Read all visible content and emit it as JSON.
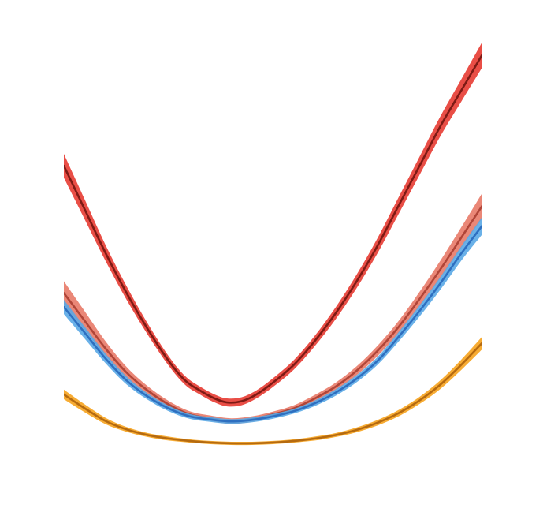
{
  "chart_data": {
    "type": "line",
    "title": "",
    "xlabel": "",
    "ylabel": "",
    "axes_visible": false,
    "grid": false,
    "legend": "none",
    "xlim": [
      -1.0,
      1.0
    ],
    "ylim": [
      0.0,
      1.0
    ],
    "series": [
      {
        "color": "#e8453c",
        "line_color": "#7d1a14",
        "band_opacity": 0.95,
        "center": [
          [
            -1.0,
            0.71
          ],
          [
            -0.9,
            0.6
          ],
          [
            -0.8,
            0.49
          ],
          [
            -0.7,
            0.39
          ],
          [
            -0.6,
            0.3
          ],
          [
            -0.5,
            0.22
          ],
          [
            -0.42,
            0.17
          ],
          [
            -0.35,
            0.145
          ],
          [
            -0.28,
            0.125
          ],
          [
            -0.22,
            0.115
          ],
          [
            -0.15,
            0.118
          ],
          [
            -0.08,
            0.135
          ],
          [
            0.0,
            0.165
          ],
          [
            0.1,
            0.21
          ],
          [
            0.2,
            0.27
          ],
          [
            0.3,
            0.34
          ],
          [
            0.4,
            0.42
          ],
          [
            0.5,
            0.51
          ],
          [
            0.6,
            0.61
          ],
          [
            0.7,
            0.71
          ],
          [
            0.8,
            0.81
          ],
          [
            0.9,
            0.9
          ],
          [
            1.0,
            0.99
          ]
        ],
        "half_width": [
          0.03,
          0.025,
          0.02,
          0.017,
          0.014,
          0.012,
          0.011,
          0.01,
          0.01,
          0.01,
          0.01,
          0.01,
          0.011,
          0.012,
          0.013,
          0.015,
          0.017,
          0.019,
          0.021,
          0.023,
          0.025,
          0.028,
          0.032
        ]
      },
      {
        "color": "#e87a68",
        "line_color": "#b04538",
        "band_opacity": 0.9,
        "center": [
          [
            -1.0,
            0.39
          ],
          [
            -0.9,
            0.32
          ],
          [
            -0.8,
            0.25
          ],
          [
            -0.7,
            0.19
          ],
          [
            -0.6,
            0.145
          ],
          [
            -0.5,
            0.11
          ],
          [
            -0.4,
            0.085
          ],
          [
            -0.3,
            0.075
          ],
          [
            -0.2,
            0.068
          ],
          [
            -0.1,
            0.073
          ],
          [
            0.0,
            0.085
          ],
          [
            0.1,
            0.1
          ],
          [
            0.2,
            0.125
          ],
          [
            0.3,
            0.155
          ],
          [
            0.4,
            0.195
          ],
          [
            0.5,
            0.245
          ],
          [
            0.6,
            0.305
          ],
          [
            0.7,
            0.375
          ],
          [
            0.8,
            0.45
          ],
          [
            0.9,
            0.53
          ],
          [
            1.0,
            0.61
          ]
        ],
        "half_width": [
          0.03,
          0.024,
          0.018,
          0.014,
          0.011,
          0.009,
          0.008,
          0.007,
          0.007,
          0.007,
          0.007,
          0.008,
          0.009,
          0.01,
          0.011,
          0.013,
          0.015,
          0.018,
          0.022,
          0.026,
          0.032
        ]
      },
      {
        "color": "#5aa9e6",
        "line_color": "#2e6fc0",
        "band_opacity": 0.9,
        "center": [
          [
            -1.0,
            0.355
          ],
          [
            -0.9,
            0.29
          ],
          [
            -0.8,
            0.225
          ],
          [
            -0.7,
            0.17
          ],
          [
            -0.6,
            0.13
          ],
          [
            -0.5,
            0.1
          ],
          [
            -0.4,
            0.08
          ],
          [
            -0.3,
            0.072
          ],
          [
            -0.2,
            0.067
          ],
          [
            -0.1,
            0.071
          ],
          [
            0.0,
            0.08
          ],
          [
            0.1,
            0.093
          ],
          [
            0.2,
            0.113
          ],
          [
            0.3,
            0.14
          ],
          [
            0.4,
            0.175
          ],
          [
            0.5,
            0.22
          ],
          [
            0.6,
            0.28
          ],
          [
            0.7,
            0.345
          ],
          [
            0.8,
            0.415
          ],
          [
            0.9,
            0.49
          ],
          [
            1.0,
            0.56
          ]
        ],
        "half_width": [
          0.018,
          0.015,
          0.012,
          0.01,
          0.008,
          0.007,
          0.006,
          0.006,
          0.006,
          0.006,
          0.006,
          0.006,
          0.007,
          0.008,
          0.009,
          0.01,
          0.012,
          0.014,
          0.016,
          0.018,
          0.022
        ]
      },
      {
        "color": "#f7a829",
        "line_color": "#b56a10",
        "band_opacity": 0.95,
        "center": [
          [
            -1.0,
            0.135
          ],
          [
            -0.9,
            0.1
          ],
          [
            -0.8,
            0.068
          ],
          [
            -0.7,
            0.047
          ],
          [
            -0.6,
            0.033
          ],
          [
            -0.5,
            0.024
          ],
          [
            -0.4,
            0.018
          ],
          [
            -0.3,
            0.014
          ],
          [
            -0.2,
            0.012
          ],
          [
            -0.1,
            0.012
          ],
          [
            0.0,
            0.014
          ],
          [
            0.1,
            0.018
          ],
          [
            0.2,
            0.024
          ],
          [
            0.3,
            0.033
          ],
          [
            0.4,
            0.046
          ],
          [
            0.5,
            0.064
          ],
          [
            0.6,
            0.088
          ],
          [
            0.7,
            0.12
          ],
          [
            0.8,
            0.16
          ],
          [
            0.9,
            0.21
          ],
          [
            1.0,
            0.265
          ]
        ],
        "half_width": [
          0.012,
          0.01,
          0.008,
          0.006,
          0.005,
          0.005,
          0.004,
          0.004,
          0.004,
          0.004,
          0.004,
          0.004,
          0.005,
          0.005,
          0.006,
          0.007,
          0.008,
          0.009,
          0.011,
          0.013,
          0.016
        ]
      }
    ]
  }
}
